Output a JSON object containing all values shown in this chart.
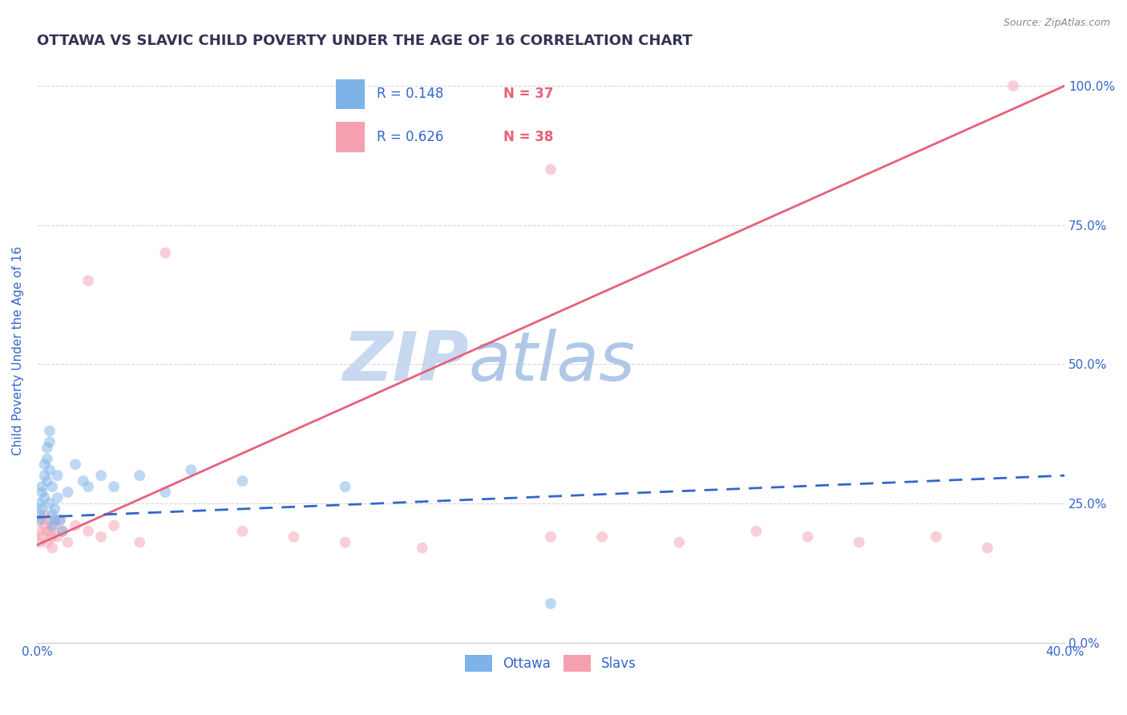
{
  "title": "OTTAWA VS SLAVIC CHILD POVERTY UNDER THE AGE OF 16 CORRELATION CHART",
  "source_text": "Source: ZipAtlas.com",
  "ylabel": "Child Poverty Under the Age of 16",
  "xlim": [
    0.0,
    0.4
  ],
  "ylim": [
    0.0,
    1.05
  ],
  "xtick_positions": [
    0.0,
    0.1,
    0.2,
    0.3,
    0.4
  ],
  "xtick_labels": [
    "0.0%",
    "",
    "",
    "",
    "40.0%"
  ],
  "ytick_vals": [
    0.0,
    0.25,
    0.5,
    0.75,
    1.0
  ],
  "ytick_labels_right": [
    "0.0%",
    "25.0%",
    "50.0%",
    "75.0%",
    "100.0%"
  ],
  "legend_r_ottawa": "R = 0.148",
  "legend_n_ottawa": "N = 37",
  "legend_r_slavs": "R = 0.626",
  "legend_n_slavs": "N = 38",
  "ottawa_color": "#7EB3E8",
  "slavs_color": "#F5A0B0",
  "ottawa_line_color": "#3366CC",
  "slavs_line_color": "#E8607A",
  "background_color": "#FFFFFF",
  "grid_color": "#CCCCCC",
  "watermark_zip": "ZIP",
  "watermark_atlas": "atlas",
  "watermark_color_zip": "#C8D8F0",
  "watermark_color_atlas": "#B0C8E8",
  "title_color": "#333355",
  "axis_label_color": "#3366CC",
  "ottawa_scatter_x": [
    0.001,
    0.001,
    0.001,
    0.002,
    0.002,
    0.002,
    0.003,
    0.003,
    0.003,
    0.004,
    0.004,
    0.004,
    0.005,
    0.005,
    0.005,
    0.005,
    0.006,
    0.006,
    0.006,
    0.007,
    0.007,
    0.008,
    0.008,
    0.009,
    0.01,
    0.012,
    0.015,
    0.018,
    0.02,
    0.025,
    0.03,
    0.04,
    0.05,
    0.06,
    0.08,
    0.12,
    0.2
  ],
  "ottawa_scatter_y": [
    0.22,
    0.25,
    0.23,
    0.27,
    0.24,
    0.28,
    0.3,
    0.32,
    0.26,
    0.33,
    0.35,
    0.29,
    0.36,
    0.31,
    0.38,
    0.25,
    0.23,
    0.28,
    0.21,
    0.24,
    0.22,
    0.26,
    0.3,
    0.22,
    0.2,
    0.27,
    0.32,
    0.29,
    0.28,
    0.3,
    0.28,
    0.3,
    0.27,
    0.31,
    0.29,
    0.28,
    0.07
  ],
  "slavs_scatter_x": [
    0.001,
    0.001,
    0.002,
    0.002,
    0.003,
    0.003,
    0.004,
    0.004,
    0.005,
    0.005,
    0.006,
    0.006,
    0.007,
    0.008,
    0.009,
    0.01,
    0.012,
    0.015,
    0.02,
    0.025,
    0.03,
    0.04,
    0.05,
    0.08,
    0.1,
    0.12,
    0.15,
    0.2,
    0.22,
    0.25,
    0.28,
    0.3,
    0.32,
    0.35,
    0.37,
    0.38,
    0.02,
    0.2
  ],
  "slavs_scatter_y": [
    0.2,
    0.18,
    0.22,
    0.19,
    0.21,
    0.23,
    0.2,
    0.18,
    0.22,
    0.2,
    0.19,
    0.17,
    0.21,
    0.19,
    0.22,
    0.2,
    0.18,
    0.21,
    0.2,
    0.19,
    0.21,
    0.18,
    0.7,
    0.2,
    0.19,
    0.18,
    0.17,
    0.19,
    0.19,
    0.18,
    0.2,
    0.19,
    0.18,
    0.19,
    0.17,
    1.0,
    0.65,
    0.85
  ],
  "ottawa_trend_x": [
    0.0,
    0.4
  ],
  "ottawa_trend_y": [
    0.225,
    0.3
  ],
  "slavs_trend_x": [
    0.0,
    0.4
  ],
  "slavs_trend_y": [
    0.175,
    1.0
  ],
  "marker_size": 100,
  "marker_alpha": 0.5,
  "title_fontsize": 13,
  "label_fontsize": 11,
  "tick_fontsize": 11,
  "source_fontsize": 9
}
